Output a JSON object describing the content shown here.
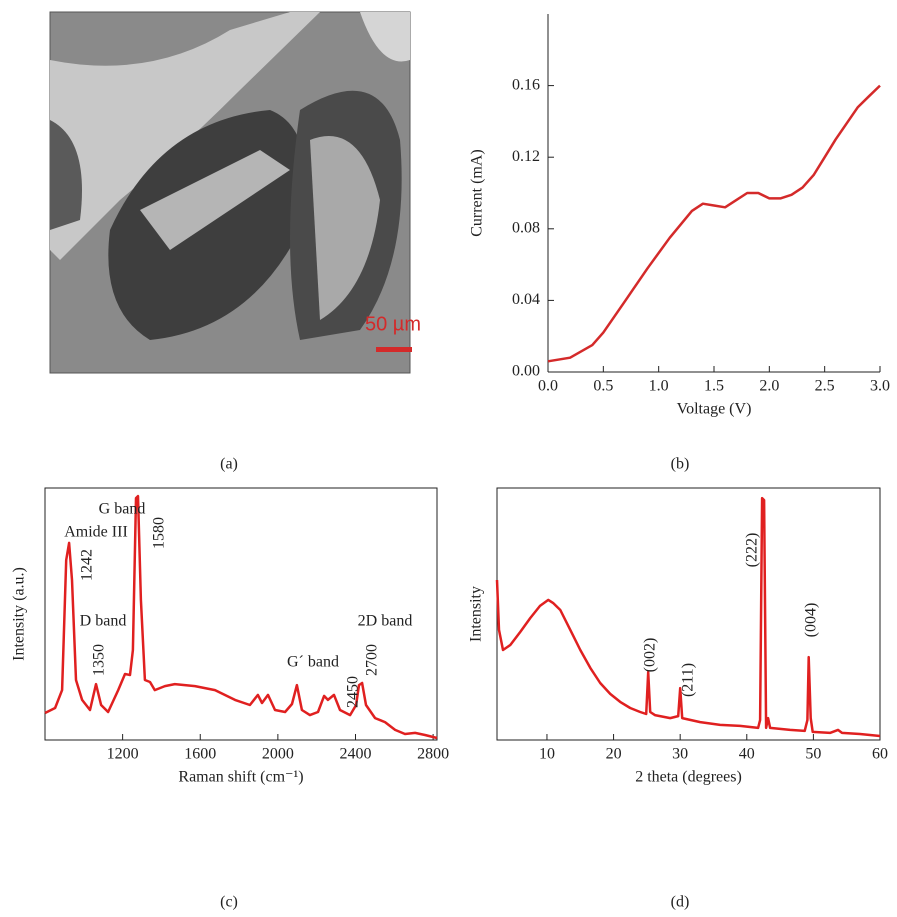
{
  "chart_data": [
    {
      "type": "image",
      "scale_label": "50 µm",
      "caption": "(a)",
      "color": "#d42a2a"
    },
    {
      "type": "line",
      "caption": "(b)",
      "xlabel": "Voltage (V)",
      "ylabel": "Current (mA)",
      "x": [
        0,
        0.2,
        0.4,
        0.5,
        0.7,
        0.9,
        1.1,
        1.3,
        1.4,
        1.5,
        1.6,
        1.7,
        1.8,
        1.9,
        2.0,
        2.1,
        2.2,
        2.3,
        2.4,
        2.5,
        2.6,
        2.7,
        2.8,
        2.9,
        3.0
      ],
      "series": [
        {
          "color": "#d42a2a",
          "values": [
            0.006,
            0.008,
            0.015,
            0.022,
            0.04,
            0.058,
            0.075,
            0.09,
            0.094,
            0.093,
            0.092,
            0.096,
            0.1,
            0.1,
            0.097,
            0.097,
            0.099,
            0.103,
            0.11,
            0.12,
            0.13,
            0.139,
            0.148,
            0.154,
            0.16
          ]
        }
      ],
      "xlim": [
        0,
        3
      ],
      "ylim": [
        0,
        0.2
      ],
      "xticks": [
        {
          "value": 0,
          "label": "0.0"
        },
        {
          "value": 0.5,
          "label": "0.5"
        },
        {
          "value": 1,
          "label": "1.0"
        },
        {
          "value": 1.5,
          "label": "1.5"
        },
        {
          "value": 2,
          "label": "2.0"
        },
        {
          "value": 2.5,
          "label": "2.5"
        },
        {
          "value": 3,
          "label": "3.0"
        }
      ],
      "yticks": [
        {
          "value": 0,
          "label": "0.00"
        },
        {
          "value": 0.04,
          "label": "0.04"
        },
        {
          "value": 0.08,
          "label": "0.08"
        },
        {
          "value": 0.12,
          "label": "0.12"
        },
        {
          "value": 0.16,
          "label": "0.16"
        }
      ]
    },
    {
      "type": "line",
      "caption": "(c)",
      "xlabel": "Raman shift (cm⁻¹)",
      "ylabel": "Intensity (a.u.)",
      "annotations": [
        "Amide III",
        "1242",
        "G band",
        "1580",
        "D band",
        "1350",
        "G´ band",
        "2450",
        "2D band",
        "2700"
      ],
      "x": [
        800,
        852,
        888,
        909,
        924,
        939,
        960,
        991,
        1032,
        1063,
        1089,
        1125,
        1177,
        1212,
        1238,
        1253,
        1269,
        1279,
        1294,
        1315,
        1341,
        1366,
        1418,
        1469,
        1573,
        1676,
        1779,
        1856,
        1897,
        1918,
        1949,
        1985,
        2037,
        2073,
        2098,
        2124,
        2165,
        2207,
        2238,
        2258,
        2289,
        2320,
        2372,
        2403,
        2418,
        2434,
        2454,
        2501,
        2552,
        2604,
        2655,
        2707,
        2758,
        2820
      ],
      "series": [
        {
          "color": "#e02020",
          "values": [
            0.107,
            0.127,
            0.198,
            0.714,
            0.782,
            0.635,
            0.238,
            0.159,
            0.119,
            0.222,
            0.139,
            0.111,
            0.198,
            0.262,
            0.258,
            0.357,
            0.96,
            0.968,
            0.556,
            0.238,
            0.23,
            0.198,
            0.214,
            0.222,
            0.214,
            0.198,
            0.159,
            0.139,
            0.179,
            0.147,
            0.179,
            0.119,
            0.111,
            0.143,
            0.218,
            0.119,
            0.099,
            0.111,
            0.175,
            0.159,
            0.179,
            0.119,
            0.099,
            0.139,
            0.218,
            0.226,
            0.139,
            0.087,
            0.071,
            0.04,
            0.024,
            0.028,
            0.02,
            0.008
          ]
        }
      ],
      "xlim": [
        800,
        2820
      ],
      "ylim": [
        0,
        1
      ],
      "xticks": [
        1200,
        1600,
        2000,
        2400,
        2800
      ]
    },
    {
      "type": "line",
      "caption": "(d)",
      "xlabel": "2 theta (degrees)",
      "ylabel": "Intensity",
      "annotations": [
        "(002)",
        "(211)",
        "(222)",
        "(004)"
      ],
      "x": [
        2.5,
        2.8,
        3.4,
        4.5,
        6.0,
        7.5,
        8.96,
        10.2,
        10.9,
        12.0,
        13.5,
        15.0,
        16.5,
        18.0,
        19.5,
        21.0,
        22.5,
        24.0,
        24.9,
        25.2,
        25.5,
        26.2,
        28.5,
        29.7,
        30.0,
        30.3,
        33.0,
        36.0,
        39.0,
        41.7,
        42.0,
        42.3,
        42.6,
        42.9,
        43.2,
        43.5,
        46.5,
        48.7,
        49.1,
        49.3,
        49.6,
        49.9,
        52.5,
        53.7,
        54.3,
        57.0,
        60
      ],
      "series": [
        {
          "color": "#e02020",
          "values": [
            0.635,
            0.437,
            0.357,
            0.377,
            0.429,
            0.484,
            0.532,
            0.556,
            0.544,
            0.516,
            0.437,
            0.357,
            0.286,
            0.226,
            0.183,
            0.151,
            0.127,
            0.111,
            0.103,
            0.27,
            0.111,
            0.099,
            0.087,
            0.095,
            0.206,
            0.087,
            0.071,
            0.06,
            0.056,
            0.048,
            0.079,
            0.96,
            0.952,
            0.048,
            0.087,
            0.048,
            0.04,
            0.036,
            0.079,
            0.329,
            0.087,
            0.032,
            0.028,
            0.04,
            0.028,
            0.024,
            0.016
          ]
        }
      ],
      "xlim": [
        2.5,
        60
      ],
      "ylim": [
        0,
        1
      ],
      "xticks": [
        10,
        20,
        30,
        40,
        50,
        60
      ]
    }
  ]
}
